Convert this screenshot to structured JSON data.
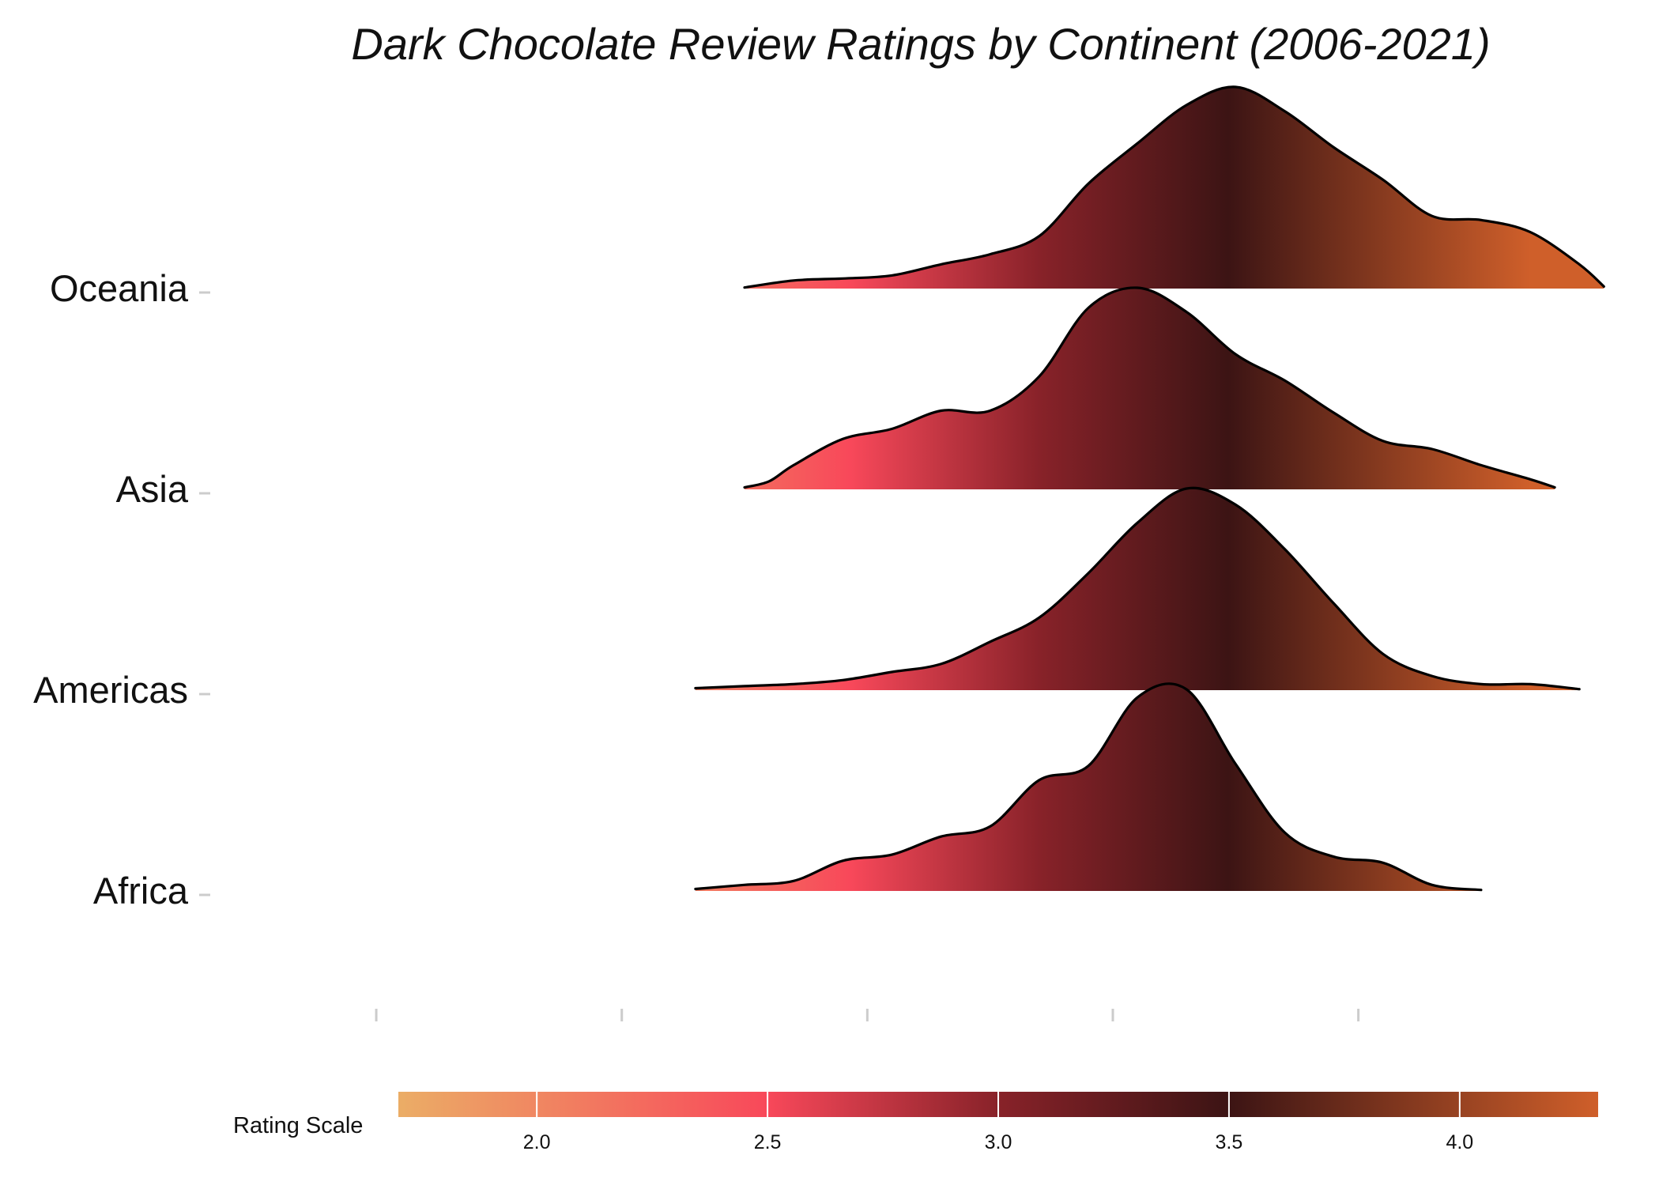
{
  "chart_data": {
    "type": "ridgeline",
    "title": "Dark Chocolate Review Ratings by Continent (2006-2021)",
    "xlabel": "",
    "ylabel": "",
    "xlim": [
      1.7,
      4.05
    ],
    "grid": false,
    "categories": [
      "Oceania",
      "Asia",
      "Americas",
      "Africa"
    ],
    "x_tick_values": [
      1.75,
      2.25,
      2.75,
      3.25,
      3.75
    ],
    "series": [
      {
        "name": "Oceania",
        "points": [
          [
            2.5,
            0.005
          ],
          [
            2.6,
            0.04
          ],
          [
            2.7,
            0.05
          ],
          [
            2.8,
            0.065
          ],
          [
            2.9,
            0.12
          ],
          [
            3.0,
            0.17
          ],
          [
            3.1,
            0.26
          ],
          [
            3.2,
            0.52
          ],
          [
            3.3,
            0.72
          ],
          [
            3.4,
            0.91
          ],
          [
            3.5,
            1.0
          ],
          [
            3.6,
            0.88
          ],
          [
            3.7,
            0.7
          ],
          [
            3.8,
            0.54
          ],
          [
            3.9,
            0.36
          ],
          [
            4.0,
            0.34
          ],
          [
            4.1,
            0.28
          ],
          [
            4.2,
            0.12
          ],
          [
            4.25,
            0.01
          ]
        ]
      },
      {
        "name": "Asia",
        "points": [
          [
            2.5,
            0.01
          ],
          [
            2.55,
            0.04
          ],
          [
            2.6,
            0.12
          ],
          [
            2.7,
            0.25
          ],
          [
            2.8,
            0.3
          ],
          [
            2.9,
            0.39
          ],
          [
            3.0,
            0.39
          ],
          [
            3.1,
            0.56
          ],
          [
            3.2,
            0.9
          ],
          [
            3.3,
            1.0
          ],
          [
            3.4,
            0.88
          ],
          [
            3.5,
            0.67
          ],
          [
            3.6,
            0.54
          ],
          [
            3.7,
            0.38
          ],
          [
            3.8,
            0.24
          ],
          [
            3.9,
            0.2
          ],
          [
            4.0,
            0.12
          ],
          [
            4.1,
            0.05
          ],
          [
            4.15,
            0.01
          ]
        ]
      },
      {
        "name": "Americas",
        "points": [
          [
            2.4,
            0.01
          ],
          [
            2.5,
            0.02
          ],
          [
            2.6,
            0.03
          ],
          [
            2.7,
            0.05
          ],
          [
            2.8,
            0.09
          ],
          [
            2.9,
            0.13
          ],
          [
            3.0,
            0.24
          ],
          [
            3.1,
            0.36
          ],
          [
            3.2,
            0.58
          ],
          [
            3.3,
            0.83
          ],
          [
            3.4,
            1.0
          ],
          [
            3.5,
            0.92
          ],
          [
            3.6,
            0.7
          ],
          [
            3.7,
            0.43
          ],
          [
            3.8,
            0.18
          ],
          [
            3.9,
            0.07
          ],
          [
            4.0,
            0.03
          ],
          [
            4.1,
            0.03
          ],
          [
            4.2,
            0.005
          ]
        ]
      },
      {
        "name": "Africa",
        "points": [
          [
            2.4,
            0.01
          ],
          [
            2.5,
            0.03
          ],
          [
            2.6,
            0.05
          ],
          [
            2.7,
            0.15
          ],
          [
            2.8,
            0.18
          ],
          [
            2.9,
            0.27
          ],
          [
            3.0,
            0.32
          ],
          [
            3.1,
            0.55
          ],
          [
            3.2,
            0.62
          ],
          [
            3.3,
            0.96
          ],
          [
            3.4,
            1.0
          ],
          [
            3.5,
            0.63
          ],
          [
            3.6,
            0.29
          ],
          [
            3.7,
            0.17
          ],
          [
            3.8,
            0.14
          ],
          [
            3.9,
            0.03
          ],
          [
            4.0,
            0.005
          ]
        ]
      }
    ],
    "legend": {
      "title": "Rating Scale",
      "placement": "bottom",
      "range": [
        1.7,
        4.3
      ],
      "tick_labels": [
        "2.0",
        "2.5",
        "3.0",
        "3.5",
        "4.0"
      ],
      "tick_values": [
        2.0,
        2.5,
        3.0,
        3.5,
        4.0
      ]
    },
    "colors": {
      "stops": [
        {
          "value": 1.7,
          "color": "#ebad66"
        },
        {
          "value": 2.5,
          "color": "#f8485a"
        },
        {
          "value": 3.0,
          "color": "#882229"
        },
        {
          "value": 3.5,
          "color": "#3c1414"
        },
        {
          "value": 4.3,
          "color": "#cf5f2a"
        }
      ],
      "outline": "#000000",
      "tick": "#cccccc"
    }
  }
}
